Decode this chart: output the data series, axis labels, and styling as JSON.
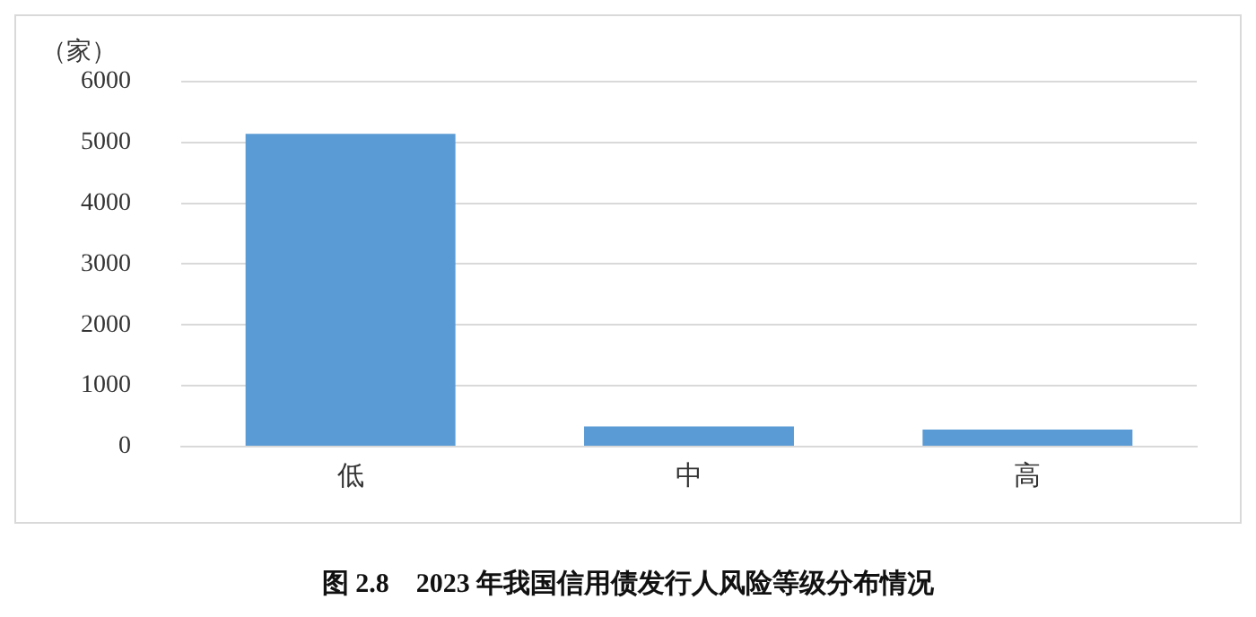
{
  "chart_data": {
    "type": "bar",
    "title": "图 2.8　2023 年我国信用债发行人风险等级分布情况",
    "ylabel": "（家）",
    "categories": [
      "低",
      "中",
      "高"
    ],
    "values": [
      5140,
      330,
      280
    ],
    "color": "#5b9bd5",
    "ylim": [
      0,
      6000
    ],
    "yticks": [
      0,
      1000,
      2000,
      3000,
      4000,
      5000,
      6000
    ],
    "grid": "y"
  }
}
